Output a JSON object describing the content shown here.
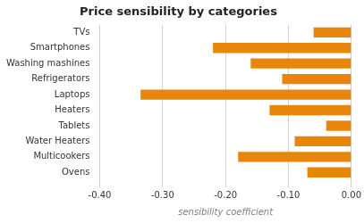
{
  "chart_data": {
    "type": "bar",
    "orientation": "horizontal",
    "title": "Price sensibility by categories",
    "categories": [
      "TVs",
      "Smartphones",
      "Washing mashines",
      "Refrigerators",
      "Laptops",
      "Heaters",
      "Tablets",
      "Water Heaters",
      "Multicookers",
      "Ovens"
    ],
    "values": [
      -0.06,
      -0.22,
      -0.16,
      -0.11,
      -0.335,
      -0.13,
      -0.04,
      -0.09,
      -0.18,
      -0.07
    ],
    "color": "#E8860C",
    "xlabel": "sensibility coefficient",
    "xlim": [
      -0.4,
      0.0
    ],
    "xticks": [
      {
        "value": -0.4,
        "label": "-0.40"
      },
      {
        "value": -0.3,
        "label": "-0.30"
      },
      {
        "value": -0.2,
        "label": "-0.20"
      },
      {
        "value": -0.1,
        "label": "-0.10"
      },
      {
        "value": 0.0,
        "label": "0.00"
      }
    ],
    "grid": true
  }
}
